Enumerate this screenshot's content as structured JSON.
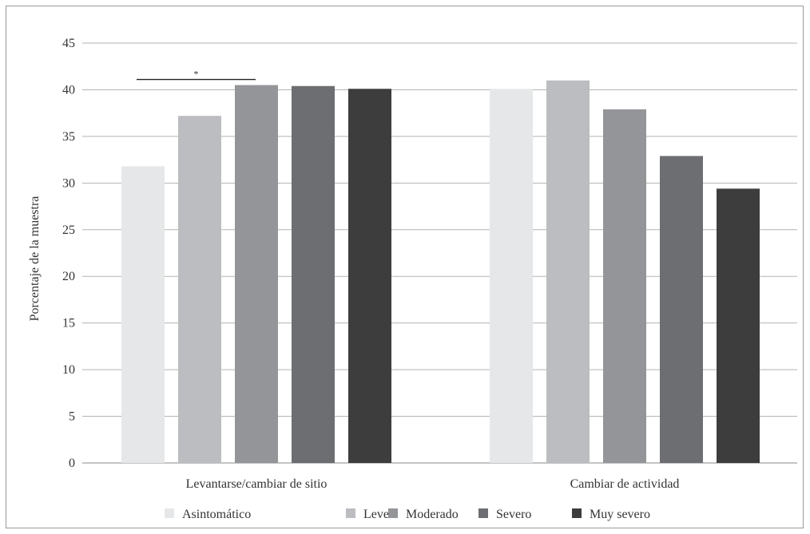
{
  "chart_data": {
    "type": "bar",
    "title": "",
    "ylabel": "Porcentaje de la muestra",
    "xlabel": "",
    "ylim": [
      0,
      45
    ],
    "yticks": [
      0,
      5,
      10,
      15,
      20,
      25,
      30,
      35,
      40,
      45
    ],
    "grid": true,
    "legend_position": "bottom",
    "categories": [
      "Levantarse/cambiar de sitio",
      "Cambiar de actividad"
    ],
    "series": [
      {
        "name": "Asintomático",
        "color": "#e6e7e8",
        "values": [
          31.8,
          40.1
        ]
      },
      {
        "name": "Leve",
        "color": "#bcbdc0",
        "values": [
          37.2,
          41.0
        ]
      },
      {
        "name": "Moderado",
        "color": "#939598",
        "values": [
          40.5,
          37.9
        ]
      },
      {
        "name": "Severo",
        "color": "#6d6e71",
        "values": [
          40.4,
          32.9
        ]
      },
      {
        "name": "Muy severo",
        "color": "#3d3d3e",
        "values": [
          40.1,
          29.4
        ]
      }
    ],
    "annotations": [
      {
        "text": "*",
        "category": "Levantarse/cambiar de sitio",
        "from_series": "Asintomático",
        "to_series": "Moderado",
        "y": 41.1
      }
    ]
  }
}
